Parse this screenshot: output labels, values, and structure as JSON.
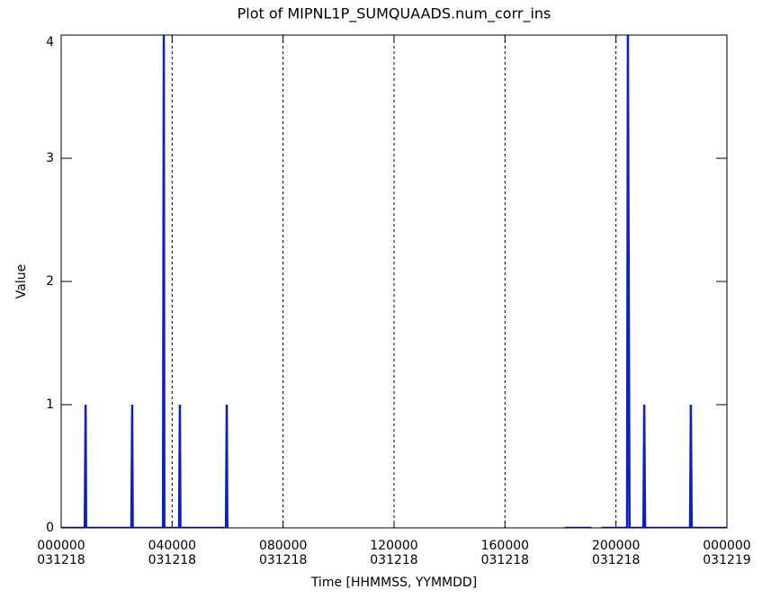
{
  "chart_data": {
    "type": "line",
    "title": "Plot of MIPNL1P_SUMQUAADS.num_corr_ins",
    "x_label": "Time [HHMMSS, YYMMDD]",
    "y_label": "Value",
    "series": [
      {
        "name": "num_corr_ins",
        "color": "#1020c0",
        "x": [
          0,
          0.85,
          0.88,
          0.9,
          2.53,
          2.56,
          2.58,
          3.67,
          3.7,
          3.72,
          4.25,
          4.28,
          4.3,
          5.94,
          5.97,
          5.99,
          10,
          18.15,
          19.12,
          19.3,
          19.48,
          20.4,
          20.43,
          20.46,
          20.49,
          20.99,
          21.02,
          21.05,
          22.67,
          22.7,
          22.73,
          24
        ],
        "values": [
          0,
          0,
          1,
          0,
          0,
          1,
          0,
          0,
          4,
          0,
          0,
          1,
          0,
          0,
          1,
          0,
          null,
          0,
          0,
          null,
          0,
          0,
          4,
          2,
          0,
          0,
          1,
          0,
          0,
          1,
          0,
          0
        ]
      }
    ],
    "xlim": [
      0,
      24
    ],
    "xticks": [
      {
        "value": 0,
        "label": [
          "000000",
          "031218"
        ]
      },
      {
        "value": 4,
        "label": [
          "040000",
          "031218"
        ]
      },
      {
        "value": 8,
        "label": [
          "080000",
          "031218"
        ]
      },
      {
        "value": 12,
        "label": [
          "120000",
          "031218"
        ]
      },
      {
        "value": 16,
        "label": [
          "160000",
          "031218"
        ]
      },
      {
        "value": 20,
        "label": [
          "200000",
          "031218"
        ]
      },
      {
        "value": 24,
        "label": [
          "000000",
          "031219"
        ]
      }
    ],
    "ylim": [
      0,
      4
    ],
    "yticks": [
      0,
      1,
      2,
      3,
      4
    ],
    "xgrid": true
  }
}
